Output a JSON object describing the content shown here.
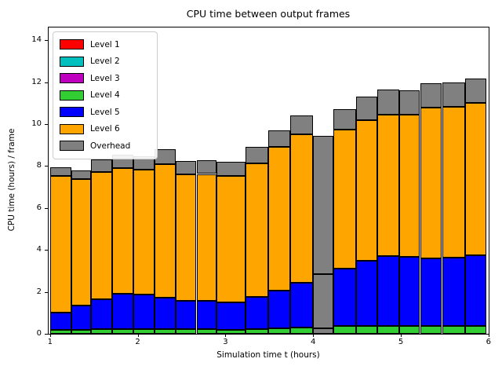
{
  "title": "CPU time between output frames",
  "xlabel": "Simulation time t (hours)",
  "ylabel": "CPU time (hours) / frame",
  "chart_data": {
    "type": "bar",
    "stacked": true,
    "grid": false,
    "legend_position": "upper left",
    "xlim": [
      0.984,
      6.002
    ],
    "ylim": [
      0,
      14.6
    ],
    "x_ticks": [
      "1",
      "2",
      "3",
      "4",
      "5",
      "6"
    ],
    "x_tick_values": [
      1,
      2,
      3,
      4,
      5,
      6
    ],
    "y_ticks": [
      "0",
      "2",
      "4",
      "6",
      "8",
      "10",
      "12",
      "14"
    ],
    "y_tick_values": [
      0,
      2,
      4,
      6,
      8,
      10,
      12,
      14
    ],
    "colors": {
      "level1": "#ff0000",
      "level2": "#00bfbf",
      "level3": "#bf00bf",
      "level4": "#32cd32",
      "level5": "#0000ff",
      "level6": "#ffa500",
      "overhead": "#808080",
      "bar_edge": "#000000"
    },
    "legend": [
      {
        "label": "Level 1",
        "color_key": "level1"
      },
      {
        "label": "Level 2",
        "color_key": "level2"
      },
      {
        "label": "Level 3",
        "color_key": "level3"
      },
      {
        "label": "Level 4",
        "color_key": "level4"
      },
      {
        "label": "Level 5",
        "color_key": "level5"
      },
      {
        "label": "Level 6",
        "color_key": "level6"
      },
      {
        "label": "Overhead",
        "color_key": "overhead"
      }
    ],
    "note": "Cumulative stack tops per bar; Levels 1-3 have negligible (zero-pixel) height in every bar. Bar at x=4.00-4.23 is almost entirely Overhead with internal edge lines at y=0.28 and y=2.85.",
    "bars": [
      {
        "x0": 1.0,
        "x1": 1.24,
        "level4": 0.18,
        "level5": 1.02,
        "level6": 7.53,
        "overhead": 7.92
      },
      {
        "x0": 1.24,
        "x1": 1.47,
        "level4": 0.18,
        "level5": 1.34,
        "level6": 7.38,
        "overhead": 7.79
      },
      {
        "x0": 1.47,
        "x1": 1.71,
        "level4": 0.22,
        "level5": 1.65,
        "level6": 7.71,
        "overhead": 8.3
      },
      {
        "x0": 1.71,
        "x1": 1.95,
        "level4": 0.22,
        "level5": 1.9,
        "level6": 7.9,
        "overhead": 8.53
      },
      {
        "x0": 1.95,
        "x1": 2.19,
        "level4": 0.22,
        "level5": 1.88,
        "level6": 7.81,
        "overhead": 8.46
      },
      {
        "x0": 2.19,
        "x1": 2.43,
        "level4": 0.22,
        "level5": 1.73,
        "level6": 8.08,
        "overhead": 8.8
      },
      {
        "x0": 2.43,
        "x1": 2.67,
        "level4": 0.22,
        "level5": 1.56,
        "level6": 7.6,
        "overhead": 8.25
      },
      {
        "x0": 2.67,
        "x1": 2.9,
        "level4": 0.22,
        "level5": 1.57,
        "level6": 7.62,
        "overhead": 8.28
      },
      {
        "x0": 2.9,
        "x1": 3.23,
        "level4": 0.19,
        "level5": 1.5,
        "level6": 7.53,
        "overhead": 8.19
      },
      {
        "x0": 3.23,
        "x1": 3.49,
        "level4": 0.24,
        "level5": 1.76,
        "level6": 8.13,
        "overhead": 8.9
      },
      {
        "x0": 3.49,
        "x1": 3.74,
        "level4": 0.27,
        "level5": 2.06,
        "level6": 8.92,
        "overhead": 9.69
      },
      {
        "x0": 3.74,
        "x1": 4.0,
        "level4": 0.3,
        "level5": 2.45,
        "level6": 9.51,
        "overhead": 10.41
      },
      {
        "x0": 4.0,
        "x1": 4.23,
        "level4": 0.0,
        "level5": 0.0,
        "level6": 0.0,
        "overhead": 9.44,
        "dividers": [
          0.28,
          2.85
        ]
      },
      {
        "x0": 4.23,
        "x1": 4.49,
        "level4": 0.38,
        "level5": 3.1,
        "level6": 9.72,
        "overhead": 10.69
      },
      {
        "x0": 4.49,
        "x1": 4.73,
        "level4": 0.38,
        "level5": 3.47,
        "level6": 10.17,
        "overhead": 11.32
      },
      {
        "x0": 4.73,
        "x1": 4.98,
        "level4": 0.38,
        "level5": 3.69,
        "level6": 10.45,
        "overhead": 11.65
      },
      {
        "x0": 4.98,
        "x1": 5.22,
        "level4": 0.38,
        "level5": 3.66,
        "level6": 10.45,
        "overhead": 11.59
      },
      {
        "x0": 5.22,
        "x1": 5.47,
        "level4": 0.38,
        "level5": 3.6,
        "level6": 10.79,
        "overhead": 11.95
      },
      {
        "x0": 5.47,
        "x1": 5.73,
        "level4": 0.38,
        "level5": 3.64,
        "level6": 10.82,
        "overhead": 12.0
      },
      {
        "x0": 5.73,
        "x1": 5.98,
        "level4": 0.38,
        "level5": 3.75,
        "level6": 11.0,
        "overhead": 12.15
      }
    ]
  }
}
